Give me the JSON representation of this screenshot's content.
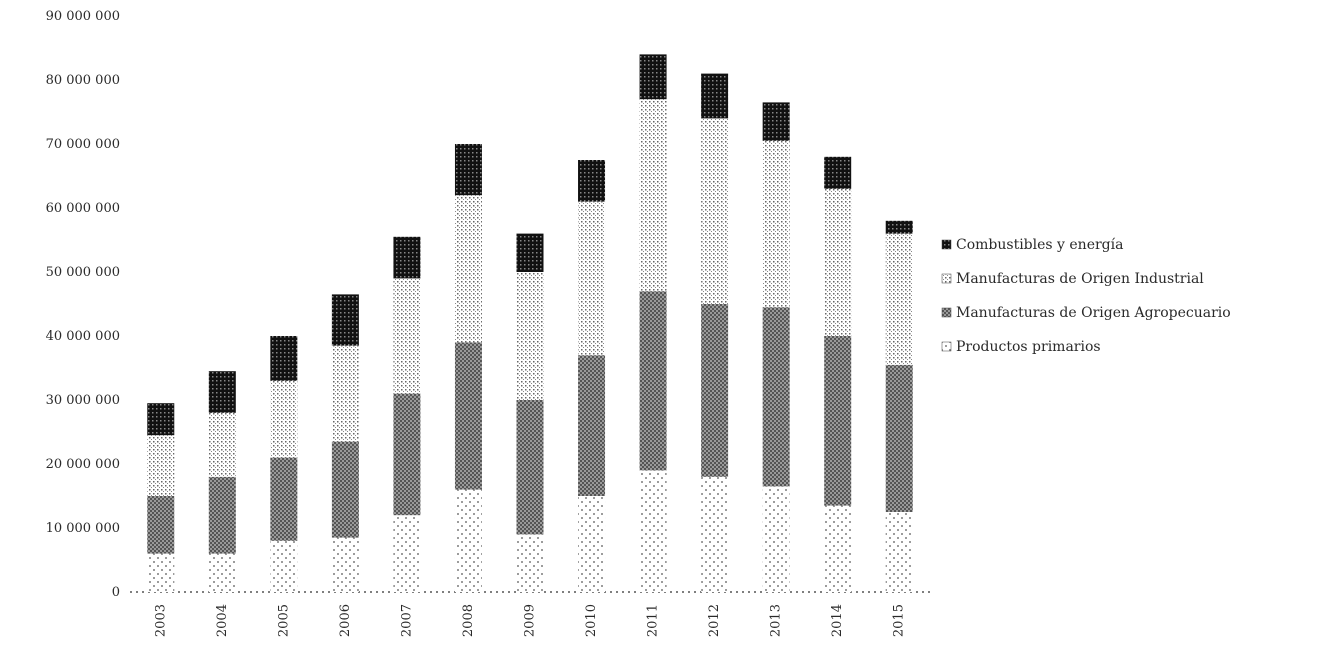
{
  "chart_data": {
    "type": "bar",
    "stacked": true,
    "title": "",
    "xlabel": "",
    "ylabel": "",
    "ylim": [
      0,
      90000000
    ],
    "yticks": [
      0,
      10000000,
      20000000,
      30000000,
      40000000,
      50000000,
      60000000,
      70000000,
      80000000,
      90000000
    ],
    "ytick_labels": [
      "0",
      "10 000 000",
      "20 000 000",
      "30 000 000",
      "40 000 000",
      "50 000 000",
      "60 000 000",
      "70 000 000",
      "80 000 000",
      "90 000 000"
    ],
    "categories": [
      "2003",
      "2004",
      "2005",
      "2006",
      "2007",
      "2008",
      "2009",
      "2010",
      "2011",
      "2012",
      "2013",
      "2014",
      "2015"
    ],
    "grid": false,
    "legend_position": "right",
    "series": [
      {
        "name": "Productos primarios",
        "color": "#f4f4f4",
        "pattern": "sparse-dots",
        "values": [
          6000000,
          6000000,
          8000000,
          8500000,
          12000000,
          16000000,
          9000000,
          15000000,
          19000000,
          18000000,
          16500000,
          13500000,
          12500000
        ]
      },
      {
        "name": "Manufacturas de Origen Agropecuario",
        "color": "#8a8a8a",
        "pattern": "dense-grey",
        "values": [
          9000000,
          12000000,
          13000000,
          15000000,
          19000000,
          23000000,
          21000000,
          22000000,
          28000000,
          27000000,
          28000000,
          26500000,
          23000000
        ]
      },
      {
        "name": "Manufacturas de Origen Industrial",
        "color": "#d8d8d8",
        "pattern": "fine-dots",
        "values": [
          9500000,
          10000000,
          12000000,
          15000000,
          18000000,
          23000000,
          20000000,
          24000000,
          30000000,
          29000000,
          26000000,
          23000000,
          20500000
        ]
      },
      {
        "name": "Combustibles y energía",
        "color": "#1e1e1e",
        "pattern": "dark-grid",
        "values": [
          5000000,
          6500000,
          7000000,
          8000000,
          6500000,
          8000000,
          6000000,
          6500000,
          7000000,
          7000000,
          6000000,
          5000000,
          2000000
        ]
      }
    ]
  }
}
